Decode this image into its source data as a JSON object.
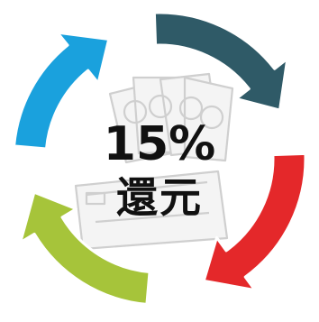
{
  "graphic": {
    "percent_text": "15%",
    "label_text": "還元"
  },
  "arrows": [
    {
      "id": "blue",
      "color": "#1aa1dd"
    },
    {
      "id": "teal",
      "color": "#2f5a67"
    },
    {
      "id": "red",
      "color": "#e4282a"
    },
    {
      "id": "green",
      "color": "#a6c43a"
    }
  ],
  "icons": {
    "money": "money-stack-icon",
    "coupon": "coupon-ticket-icon"
  },
  "colors": {
    "background": "#ffffff",
    "text": "#111111",
    "icon_fill": "#f4f4f4",
    "icon_stroke": "#cfcfcf"
  }
}
